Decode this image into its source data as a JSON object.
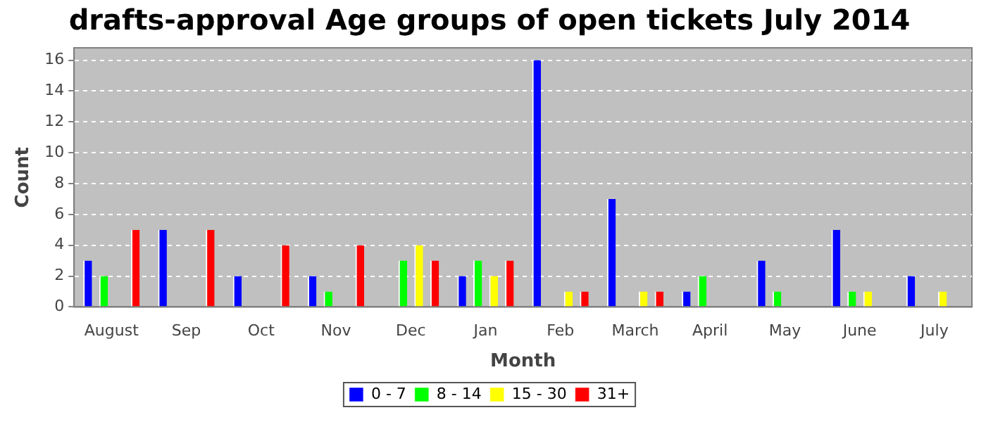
{
  "chart_data": {
    "type": "bar",
    "title": "drafts-approval Age groups of open tickets July 2014",
    "xlabel": "Month",
    "ylabel": "Count",
    "categories": [
      "August",
      "Sep",
      "Oct",
      "Nov",
      "Dec",
      "Jan",
      "Feb",
      "March",
      "April",
      "May",
      "June",
      "July"
    ],
    "series": [
      {
        "name": "0 - 7",
        "color": "#0000ff",
        "values": [
          3,
          5,
          2,
          2,
          0,
          2,
          16,
          7,
          1,
          3,
          5,
          2
        ]
      },
      {
        "name": "8 - 14",
        "color": "#00ff00",
        "values": [
          2,
          0,
          0,
          1,
          3,
          3,
          0,
          0,
          2,
          1,
          1,
          0
        ]
      },
      {
        "name": "15 - 30",
        "color": "#ffff00",
        "values": [
          0,
          0,
          0,
          0,
          4,
          2,
          1,
          1,
          0,
          0,
          1,
          1
        ]
      },
      {
        "name": "31+",
        "color": "#ff0000",
        "values": [
          5,
          5,
          4,
          4,
          3,
          3,
          1,
          1,
          0,
          0,
          0,
          0
        ]
      }
    ],
    "ylim": [
      0,
      16.8
    ],
    "yticks": [
      0,
      2,
      4,
      6,
      8,
      10,
      12,
      14,
      16
    ],
    "grid": "y",
    "legend": "bottom"
  }
}
